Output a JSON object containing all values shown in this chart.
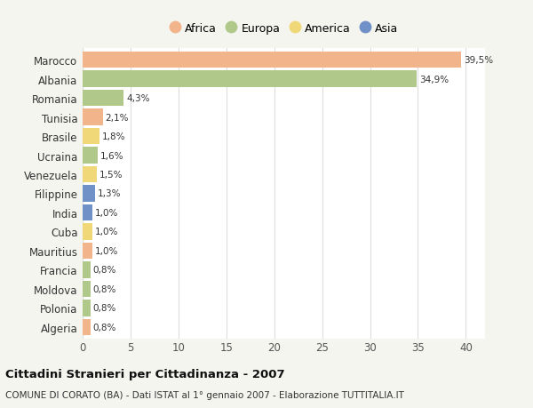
{
  "countries": [
    "Marocco",
    "Albania",
    "Romania",
    "Tunisia",
    "Brasile",
    "Ucraina",
    "Venezuela",
    "Filippine",
    "India",
    "Cuba",
    "Mauritius",
    "Francia",
    "Moldova",
    "Polonia",
    "Algeria"
  ],
  "values": [
    39.5,
    34.9,
    4.3,
    2.1,
    1.8,
    1.6,
    1.5,
    1.3,
    1.0,
    1.0,
    1.0,
    0.8,
    0.8,
    0.8,
    0.8
  ],
  "labels": [
    "39,5%",
    "34,9%",
    "4,3%",
    "2,1%",
    "1,8%",
    "1,6%",
    "1,5%",
    "1,3%",
    "1,0%",
    "1,0%",
    "1,0%",
    "0,8%",
    "0,8%",
    "0,8%",
    "0,8%"
  ],
  "continents": [
    "Africa",
    "Europa",
    "Europa",
    "Africa",
    "America",
    "Europa",
    "America",
    "Asia",
    "Asia",
    "America",
    "Africa",
    "Europa",
    "Europa",
    "Europa",
    "Africa"
  ],
  "colors": {
    "Africa": "#F2B48A",
    "Europa": "#B0C98A",
    "America": "#F0D878",
    "Asia": "#7090C8"
  },
  "legend_order": [
    "Africa",
    "Europa",
    "America",
    "Asia"
  ],
  "title": "Cittadini Stranieri per Cittadinanza - 2007",
  "subtitle": "COMUNE DI CORATO (BA) - Dati ISTAT al 1° gennaio 2007 - Elaborazione TUTTITALIA.IT",
  "xlim": [
    0,
    42
  ],
  "xticks": [
    0,
    5,
    10,
    15,
    20,
    25,
    30,
    35,
    40
  ],
  "background_color": "#f5f5f0",
  "plot_background": "#ffffff",
  "grid_color": "#dddddd",
  "bar_height": 0.85
}
